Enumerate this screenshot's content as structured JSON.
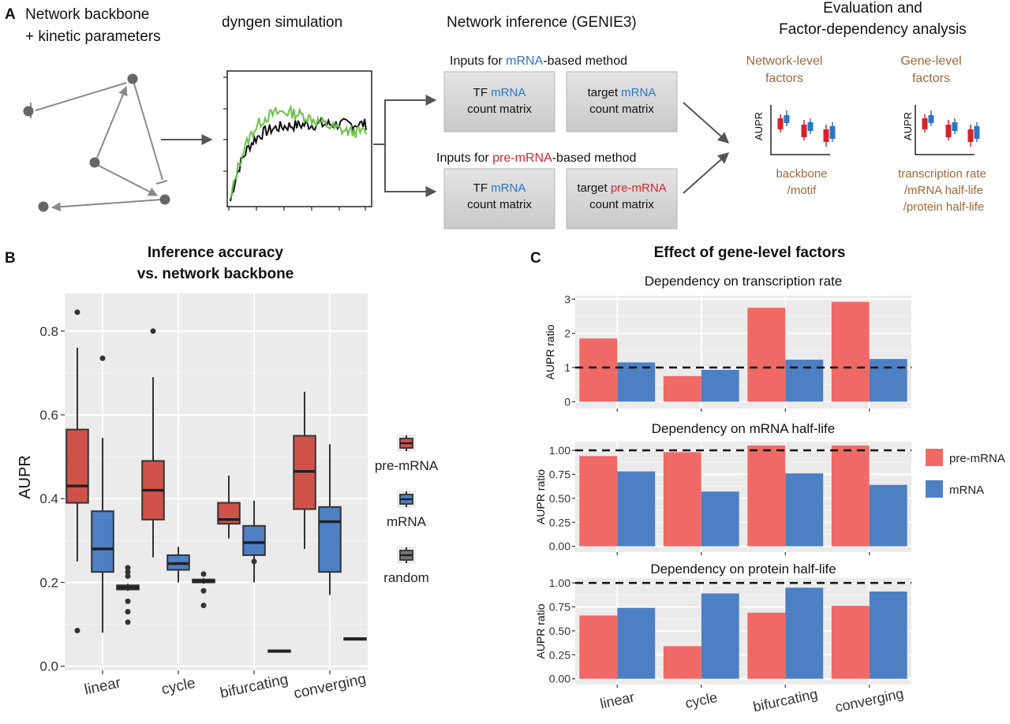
{
  "panelA": {
    "label": "A",
    "col1": {
      "line1": "Network backbone",
      "line2": "+ kinetic parameters"
    },
    "col2": {
      "title": "dyngen simulation"
    },
    "col3": {
      "title": "Network inference (GENIE3)",
      "mrna_heading": {
        "pre": "Inputs for ",
        "hl": "mRNA",
        "post": "-based method"
      },
      "premrna_heading": {
        "pre": "Inputs for ",
        "hl": "pre-mRNA",
        "post": "-based method"
      },
      "box_tf_mrna": {
        "pre": "TF ",
        "hl": "mRNA",
        "line2": "count matrix"
      },
      "box_target_mrna": {
        "pre": "target ",
        "hl": "mRNA",
        "line2": "count matrix"
      },
      "box_tf_mrna2": {
        "pre": "TF ",
        "hl": "mRNA",
        "line2": "count matrix"
      },
      "box_target_premrna": {
        "pre": "target ",
        "hl": "pre-mRNA",
        "line2": "count matrix"
      }
    },
    "col4": {
      "title1": "Evaluation and",
      "title2": "Factor-dependency analysis",
      "net_title1": "Network-level",
      "net_title2": "factors",
      "gene_title1": "Gene-level",
      "gene_title2": "factors",
      "ylabel": "AUPR",
      "net_x1": "backbone",
      "net_x2": "/motif",
      "gene_x1": "transcription rate",
      "gene_x2": "/mRNA half-life",
      "gene_x3": "/protein half-life"
    },
    "colors": {
      "mrna": "#2f74c2",
      "premrna": "#d2252b",
      "brown": "#a0673a"
    }
  },
  "panelB": {
    "label": "B",
    "title1": "Inference accuracy",
    "title2": "vs. network backbone",
    "ylabel": "AUPR",
    "legend": [
      "pre-mRNA",
      "mRNA",
      "random"
    ],
    "chart_data": {
      "type": "box",
      "categories": [
        "linear",
        "cycle",
        "bifurcating",
        "converging"
      ],
      "ylim": [
        -0.01,
        0.89
      ],
      "yticks": [
        0.0,
        0.2,
        0.4,
        0.6,
        0.8
      ],
      "series": [
        {
          "name": "pre-mRNA",
          "color": "#d0534a",
          "boxes": [
            {
              "q1": 0.39,
              "median": 0.43,
              "q3": 0.565,
              "wlow": 0.25,
              "whigh": 0.76,
              "outliers": [
                0.845,
                0.085
              ]
            },
            {
              "q1": 0.35,
              "median": 0.42,
              "q3": 0.49,
              "wlow": 0.26,
              "whigh": 0.69,
              "outliers": [
                0.8
              ]
            },
            {
              "q1": 0.34,
              "median": 0.35,
              "q3": 0.39,
              "wlow": 0.305,
              "whigh": 0.455,
              "outliers": []
            },
            {
              "q1": 0.375,
              "median": 0.465,
              "q3": 0.55,
              "wlow": 0.28,
              "whigh": 0.655,
              "outliers": []
            }
          ]
        },
        {
          "name": "mRNA",
          "color": "#4d80c3",
          "boxes": [
            {
              "q1": 0.225,
              "median": 0.28,
              "q3": 0.37,
              "wlow": 0.08,
              "whigh": 0.545,
              "outliers": [
                0.735
              ]
            },
            {
              "q1": 0.23,
              "median": 0.245,
              "q3": 0.265,
              "wlow": 0.2,
              "whigh": 0.285,
              "outliers": []
            },
            {
              "q1": 0.265,
              "median": 0.295,
              "q3": 0.335,
              "wlow": 0.2,
              "whigh": 0.395,
              "outliers": [
                0.25
              ]
            },
            {
              "q1": 0.225,
              "median": 0.345,
              "q3": 0.38,
              "wlow": 0.17,
              "whigh": 0.53,
              "outliers": []
            }
          ]
        },
        {
          "name": "random",
          "color": "#777777",
          "boxes": [
            {
              "q1": 0.183,
              "median": 0.188,
              "q3": 0.193,
              "wlow": 0.18,
              "whigh": 0.197,
              "outliers": [
                0.235,
                0.225,
                0.215,
                0.155,
                0.13,
                0.105
              ]
            },
            {
              "q1": 0.2,
              "median": 0.203,
              "q3": 0.207,
              "wlow": 0.197,
              "whigh": 0.21,
              "outliers": [
                0.22,
                0.18,
                0.145
              ]
            },
            {
              "q1": 0.034,
              "median": 0.036,
              "q3": 0.038,
              "wlow": 0.033,
              "whigh": 0.039,
              "outliers": []
            },
            {
              "q1": 0.063,
              "median": 0.065,
              "q3": 0.067,
              "wlow": 0.062,
              "whigh": 0.068,
              "outliers": []
            }
          ]
        }
      ]
    }
  },
  "panelC": {
    "label": "C",
    "title": "Effect of gene-level factors",
    "legend": [
      "pre-mRNA",
      "mRNA"
    ],
    "ylabel": "AUPR ratio",
    "chart_data": [
      {
        "type": "bar",
        "title": "Dependency on transcription rate",
        "categories": [
          "linear",
          "cycle",
          "bifurcating",
          "converging"
        ],
        "ylim": [
          -0.2,
          3.1
        ],
        "yticks": [
          0,
          1,
          2,
          3
        ],
        "yticklabels": [
          "0",
          "1",
          "2",
          "3"
        ],
        "refline": 1,
        "series": [
          {
            "name": "pre-mRNA",
            "values": [
              1.85,
              0.75,
              2.75,
              2.92
            ]
          },
          {
            "name": "mRNA",
            "values": [
              1.15,
              0.93,
              1.23,
              1.25
            ]
          }
        ]
      },
      {
        "type": "bar",
        "title": "Dependency on mRNA half-life",
        "categories": [
          "linear",
          "cycle",
          "bifurcating",
          "converging"
        ],
        "ylim": [
          -0.06,
          1.09
        ],
        "yticks": [
          0,
          0.25,
          0.5,
          0.75,
          1.0
        ],
        "yticklabels": [
          "0.00",
          "0.25",
          "0.50",
          "0.75",
          "1.00"
        ],
        "refline": 1,
        "series": [
          {
            "name": "pre-mRNA",
            "values": [
              0.94,
              0.98,
              1.05,
              1.05
            ]
          },
          {
            "name": "mRNA",
            "values": [
              0.78,
              0.57,
              0.76,
              0.64
            ]
          }
        ]
      },
      {
        "type": "bar",
        "title": "Dependency on protein half-life",
        "categories": [
          "linear",
          "cycle",
          "bifurcating",
          "converging"
        ],
        "ylim": [
          -0.06,
          1.05
        ],
        "yticks": [
          0,
          0.25,
          0.5,
          0.75,
          1.0
        ],
        "yticklabels": [
          "0.00",
          "0.25",
          "0.50",
          "0.75",
          "1.00"
        ],
        "refline": 1,
        "series": [
          {
            "name": "pre-mRNA",
            "values": [
              0.66,
              0.34,
              0.69,
              0.76
            ]
          },
          {
            "name": "mRNA",
            "values": [
              0.74,
              0.89,
              0.95,
              0.91
            ]
          }
        ]
      }
    ]
  }
}
